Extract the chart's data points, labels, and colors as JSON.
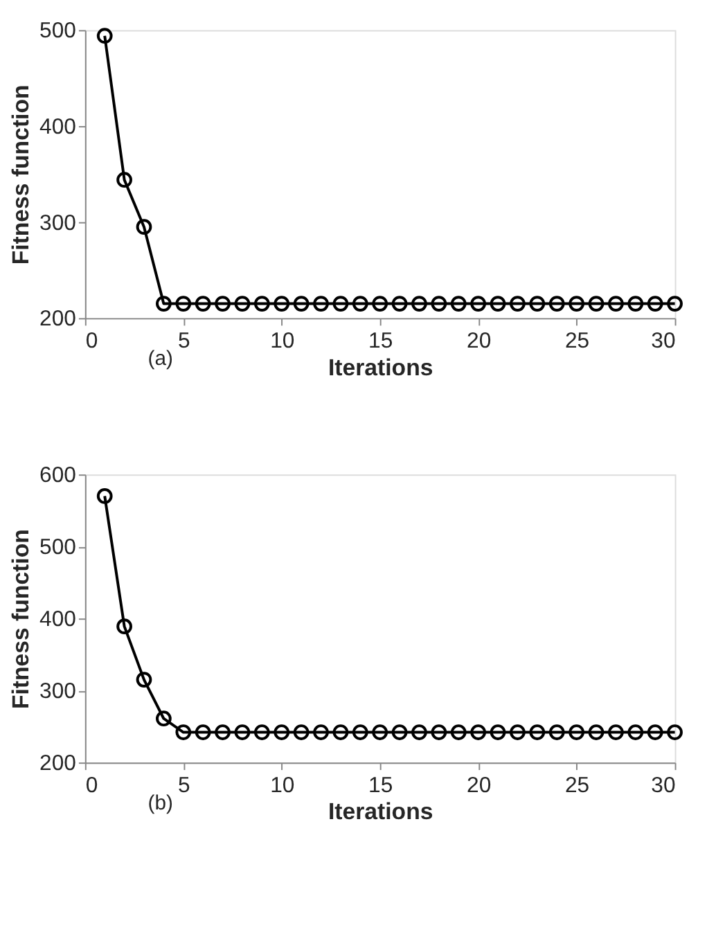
{
  "chart_data": [
    {
      "type": "line",
      "xlabel": "Iterations",
      "ylabel": "Fitness function",
      "annotations": [
        "(a)"
      ],
      "x": [
        1,
        2,
        3,
        4,
        5,
        6,
        7,
        8,
        9,
        10,
        11,
        12,
        13,
        14,
        15,
        16,
        17,
        18,
        19,
        20,
        21,
        22,
        23,
        24,
        25,
        26,
        27,
        28,
        29,
        30
      ],
      "series": [
        {
          "color": "#000000",
          "values": [
            494,
            344,
            295,
            215,
            215,
            215,
            215,
            215,
            215,
            215,
            215,
            215,
            215,
            215,
            215,
            215,
            215,
            215,
            215,
            215,
            215,
            215,
            215,
            215,
            215,
            215,
            215,
            215,
            215,
            215
          ]
        }
      ],
      "xlim": [
        0,
        30
      ],
      "xticks": [
        0,
        5,
        10,
        15,
        20,
        25,
        30
      ],
      "ylim": [
        200,
        500
      ],
      "yticks": [
        200,
        300,
        400,
        500
      ],
      "grid": false,
      "marker": "circle",
      "line_style": "solid"
    },
    {
      "type": "line",
      "xlabel": "Iterations",
      "ylabel": "Fitness function",
      "annotations": [
        "(b)"
      ],
      "x": [
        1,
        2,
        3,
        4,
        5,
        6,
        7,
        8,
        9,
        10,
        11,
        12,
        13,
        14,
        15,
        16,
        17,
        18,
        19,
        20,
        21,
        22,
        23,
        24,
        25,
        26,
        27,
        28,
        29,
        30
      ],
      "series": [
        {
          "color": "#000000",
          "values": [
            570,
            389,
            315,
            261,
            242,
            242,
            242,
            242,
            242,
            242,
            242,
            242,
            242,
            242,
            242,
            242,
            242,
            242,
            242,
            242,
            242,
            242,
            242,
            242,
            242,
            242,
            242,
            242,
            242,
            242
          ]
        }
      ],
      "xlim": [
        0,
        30
      ],
      "xticks": [
        0,
        5,
        10,
        15,
        20,
        25,
        30
      ],
      "ylim": [
        200,
        600
      ],
      "yticks": [
        200,
        300,
        400,
        500,
        600
      ],
      "grid": false,
      "marker": "circle",
      "line_style": "solid"
    }
  ]
}
